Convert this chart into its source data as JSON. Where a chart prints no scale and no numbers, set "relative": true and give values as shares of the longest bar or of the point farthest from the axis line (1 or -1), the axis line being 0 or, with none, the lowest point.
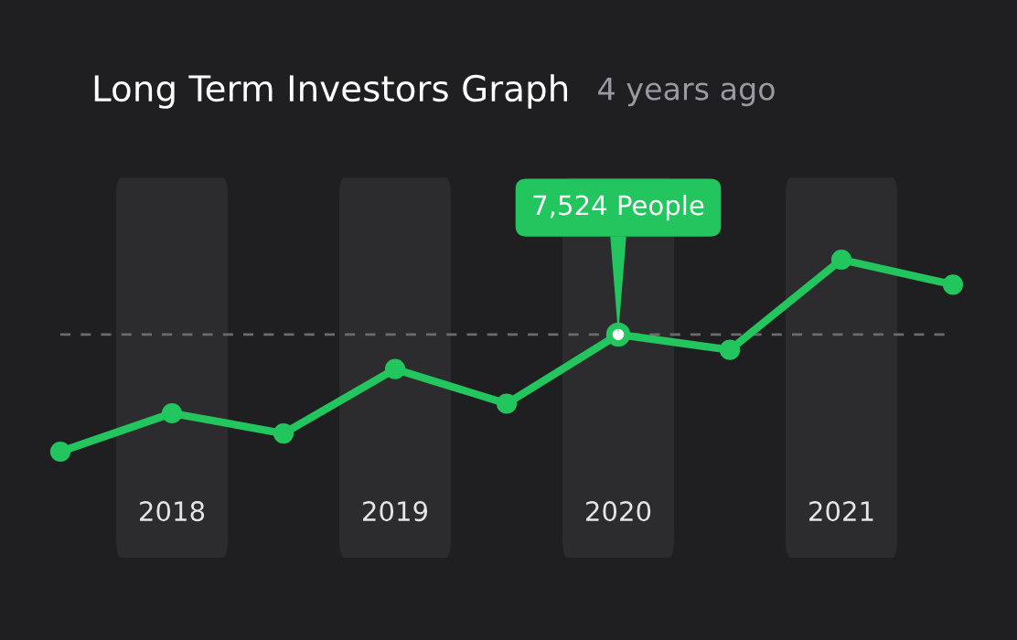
{
  "chart_data": {
    "type": "line",
    "title": "Long Term Investors Graph",
    "subtitle": "4 years ago",
    "categories": [
      null,
      "2018",
      null,
      "2019",
      null,
      "2020",
      null,
      "2021",
      null
    ],
    "relative": true,
    "series": [
      {
        "color": "#22c55e",
        "values": [
          0,
          0.2,
          0.095,
          0.43,
          0.25,
          0.61,
          0.53,
          1,
          0.87
        ]
      }
    ],
    "marker": "circle",
    "line_style": "solid",
    "legend": false,
    "ref_lines": [
      {
        "axis": "y",
        "value": 0.61,
        "color": "#6b6b70",
        "line_style": "dashed"
      }
    ],
    "annotations": [
      {
        "text": "7,524 People",
        "x": "2020",
        "y": 0.61
      }
    ]
  }
}
